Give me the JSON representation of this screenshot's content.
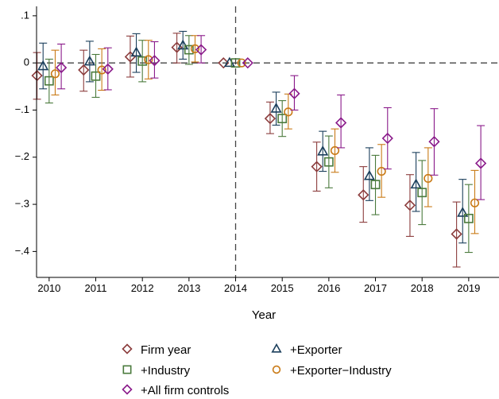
{
  "chart_data": {
    "type": "scatter",
    "xlabel": "Year",
    "ylabel": "",
    "x": [
      2010,
      2011,
      2012,
      2013,
      2014,
      2015,
      2016,
      2017,
      2018,
      2019
    ],
    "x_tick_labels": [
      "2010",
      "2011",
      "2012",
      "2013",
      "2014",
      "2015",
      "2016",
      "2017",
      "2018",
      "2019"
    ],
    "y_ticks": [
      0.1,
      0,
      -0.1,
      -0.2,
      -0.3,
      -0.4
    ],
    "y_tick_labels": [
      ".1",
      "0",
      "−.1",
      "−.2",
      "−.3",
      "−.4"
    ],
    "ylim": [
      -0.455,
      0.12
    ],
    "xlim": [
      2009.73,
      2019.65
    ],
    "reference_lines": {
      "vertical_x": 2014,
      "horizontal_y": 0,
      "style": "dashed",
      "color": "#444444"
    },
    "grid": false,
    "legend_position": "bottom",
    "series": [
      {
        "name": "Firm year",
        "marker": "diamond",
        "color": "#8b3c3c",
        "offset": -0.26,
        "values": [
          -0.027,
          -0.015,
          0.013,
          0.033,
          0.0,
          -0.118,
          -0.22,
          -0.28,
          -0.302,
          -0.363
        ],
        "ci_low": [
          -0.077,
          -0.06,
          -0.03,
          0.0,
          0.0,
          -0.15,
          -0.272,
          -0.338,
          -0.368,
          -0.433
        ],
        "ci_high": [
          0.022,
          0.027,
          0.057,
          0.063,
          0.0,
          -0.083,
          -0.168,
          -0.22,
          -0.237,
          -0.295
        ]
      },
      {
        "name": "+Exporter",
        "marker": "triangle",
        "color": "#1b3f5c",
        "offset": -0.13,
        "values": [
          -0.007,
          0.003,
          0.022,
          0.037,
          0.0,
          -0.097,
          -0.188,
          -0.24,
          -0.258,
          -0.318
        ],
        "ci_low": [
          -0.055,
          -0.04,
          -0.02,
          0.008,
          0.0,
          -0.132,
          -0.23,
          -0.292,
          -0.315,
          -0.382
        ],
        "ci_high": [
          0.042,
          0.046,
          0.062,
          0.067,
          0.0,
          -0.062,
          -0.145,
          -0.18,
          -0.19,
          -0.247
        ]
      },
      {
        "name": "+Industry",
        "marker": "square",
        "color": "#4a7a3c",
        "offset": 0.0,
        "values": [
          -0.038,
          -0.028,
          0.004,
          0.028,
          0.0,
          -0.118,
          -0.21,
          -0.258,
          -0.275,
          -0.33
        ],
        "ci_low": [
          -0.085,
          -0.073,
          -0.04,
          -0.003,
          0.0,
          -0.156,
          -0.265,
          -0.322,
          -0.343,
          -0.402
        ],
        "ci_high": [
          0.008,
          0.018,
          0.048,
          0.058,
          0.0,
          -0.08,
          -0.155,
          -0.196,
          -0.207,
          -0.258
        ]
      },
      {
        "name": "+Exporter−Industry",
        "marker": "circle",
        "color": "#c97a16",
        "offset": 0.13,
        "values": [
          -0.023,
          -0.015,
          0.007,
          0.03,
          0.0,
          -0.104,
          -0.186,
          -0.23,
          -0.245,
          -0.297
        ],
        "ci_low": [
          -0.068,
          -0.058,
          -0.034,
          0.002,
          0.0,
          -0.14,
          -0.232,
          -0.285,
          -0.305,
          -0.362
        ],
        "ci_high": [
          0.027,
          0.03,
          0.048,
          0.058,
          0.0,
          -0.066,
          -0.14,
          -0.173,
          -0.18,
          -0.228
        ]
      },
      {
        "name": "+All firm controls",
        "marker": "diamond",
        "color": "#8a1a8a",
        "offset": 0.26,
        "values": [
          -0.01,
          -0.013,
          0.005,
          0.028,
          0.0,
          -0.065,
          -0.127,
          -0.16,
          -0.167,
          -0.213
        ],
        "ci_low": [
          -0.055,
          -0.057,
          -0.032,
          0.0,
          0.0,
          -0.1,
          -0.18,
          -0.225,
          -0.238,
          -0.29
        ],
        "ci_high": [
          0.04,
          0.032,
          0.045,
          0.058,
          0.0,
          -0.027,
          -0.068,
          -0.095,
          -0.097,
          -0.133
        ]
      }
    ]
  }
}
